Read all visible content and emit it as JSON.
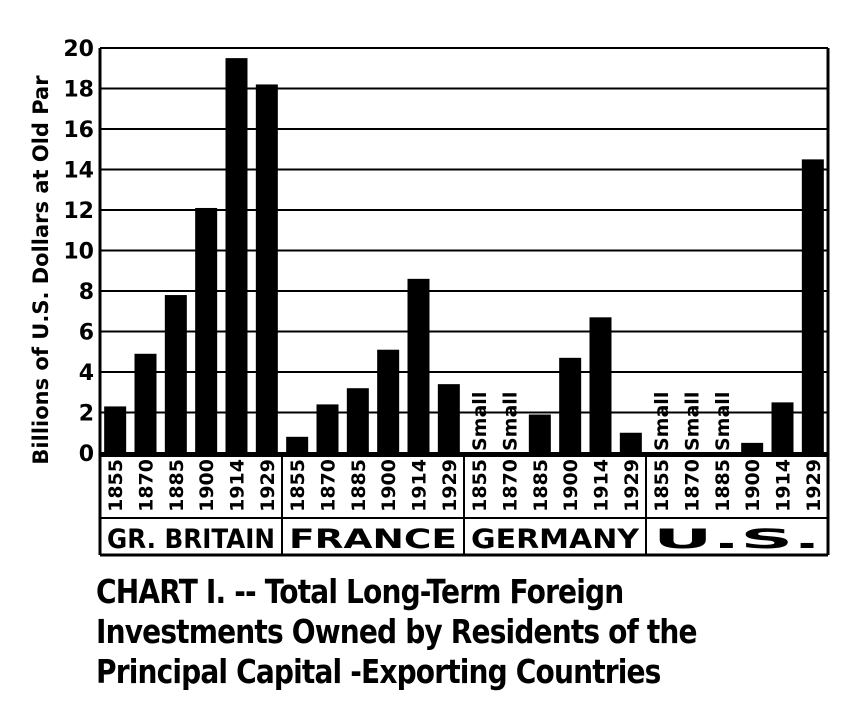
{
  "chart_data": {
    "type": "bar",
    "ylabel": "Billions of U.S. Dollars at Old Par",
    "ylim": [
      0,
      20
    ],
    "yticks": [
      0,
      2,
      4,
      6,
      8,
      10,
      12,
      14,
      16,
      18,
      20
    ],
    "grid": true,
    "groups": [
      {
        "name": "GR. BRITAIN",
        "bars": [
          {
            "year": "1855",
            "value": 2.3
          },
          {
            "year": "1870",
            "value": 4.9
          },
          {
            "year": "1885",
            "value": 7.8
          },
          {
            "year": "1900",
            "value": 12.1
          },
          {
            "year": "1914",
            "value": 19.5
          },
          {
            "year": "1929",
            "value": 18.2
          }
        ]
      },
      {
        "name": "FRANCE",
        "bars": [
          {
            "year": "1855",
            "value": 0.8
          },
          {
            "year": "1870",
            "value": 2.4
          },
          {
            "year": "1885",
            "value": 3.2
          },
          {
            "year": "1900",
            "value": 5.1
          },
          {
            "year": "1914",
            "value": 8.6
          },
          {
            "year": "1929",
            "value": 3.4
          }
        ]
      },
      {
        "name": "GERMANY",
        "bars": [
          {
            "year": "1855",
            "value": 0,
            "note": "Small"
          },
          {
            "year": "1870",
            "value": 0,
            "note": "Small"
          },
          {
            "year": "1885",
            "value": 1.9
          },
          {
            "year": "1900",
            "value": 4.7
          },
          {
            "year": "1914",
            "value": 6.7
          },
          {
            "year": "1929",
            "value": 1.0
          }
        ]
      },
      {
        "name": "U.S.",
        "bars": [
          {
            "year": "1855",
            "value": 0,
            "note": "Small"
          },
          {
            "year": "1870",
            "value": 0,
            "note": "Small"
          },
          {
            "year": "1885",
            "value": 0,
            "note": "Small"
          },
          {
            "year": "1900",
            "value": 0.5
          },
          {
            "year": "1914",
            "value": 2.5
          },
          {
            "year": "1929",
            "value": 14.5
          }
        ]
      }
    ]
  },
  "caption": {
    "line1": "CHART  I. -- Total Long-Term Foreign",
    "line2": "Investments Owned by Residents of the",
    "line3": "Principal Capital -Exporting Countries"
  }
}
